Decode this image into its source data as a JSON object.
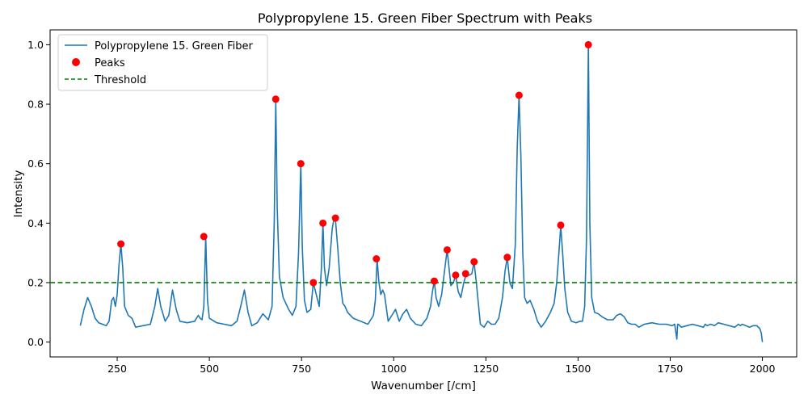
{
  "chart_data": {
    "type": "line",
    "title": "Polypropylene 15. Green Fiber Spectrum with Peaks",
    "xlabel": "Wavenumber [/cm]",
    "ylabel": "Intensity",
    "xlim": [
      68,
      2093
    ],
    "ylim": [
      -0.05,
      1.05
    ],
    "xticks": [
      250,
      500,
      750,
      1000,
      1250,
      1500,
      1750,
      2000
    ],
    "yticks": [
      0.0,
      0.2,
      0.4,
      0.6,
      0.8,
      1.0
    ],
    "xtick_labels": [
      "250",
      "500",
      "750",
      "1000",
      "1250",
      "1500",
      "1750",
      "2000"
    ],
    "ytick_labels": [
      "0.0",
      "0.2",
      "0.4",
      "0.6",
      "0.8",
      "1.0"
    ],
    "grid": false,
    "legend_position": "top-left",
    "legend": [
      {
        "label": "Polypropylene 15. Green Fiber",
        "kind": "line",
        "color": "#1f77b4"
      },
      {
        "label": "Peaks",
        "kind": "marker",
        "color": "#ff0000"
      },
      {
        "label": "Threshold",
        "kind": "dashed",
        "color": "#008000"
      }
    ],
    "series": [
      {
        "name": "Polypropylene 15. Green Fiber",
        "color": "#1f77b4",
        "x": [
          150,
          160,
          170,
          180,
          190,
          200,
          210,
          220,
          228,
          235,
          240,
          245,
          250,
          255,
          260,
          265,
          270,
          280,
          290,
          300,
          320,
          340,
          352,
          360,
          368,
          380,
          390,
          400,
          410,
          420,
          440,
          460,
          470,
          475,
          480,
          485,
          490,
          495,
          500,
          520,
          540,
          560,
          575,
          585,
          595,
          605,
          615,
          630,
          645,
          660,
          670,
          676,
          680,
          684,
          690,
          700,
          715,
          725,
          735,
          742,
          748,
          752,
          758,
          765,
          775,
          782,
          790,
          798,
          804,
          808,
          812,
          818,
          825,
          833,
          838,
          842,
          848,
          855,
          862,
          868,
          875,
          890,
          910,
          930,
          945,
          950,
          955,
          960,
          965,
          970,
          975,
          985,
          995,
          1005,
          1015,
          1025,
          1035,
          1045,
          1060,
          1075,
          1090,
          1100,
          1105,
          1110,
          1115,
          1122,
          1130,
          1138,
          1145,
          1150,
          1155,
          1162,
          1168,
          1175,
          1182,
          1190,
          1197,
          1205,
          1212,
          1218,
          1225,
          1235,
          1245,
          1255,
          1265,
          1275,
          1285,
          1295,
          1302,
          1308,
          1315,
          1322,
          1330,
          1335,
          1340,
          1345,
          1350,
          1355,
          1362,
          1370,
          1380,
          1390,
          1400,
          1412,
          1425,
          1435,
          1442,
          1448,
          1453,
          1458,
          1464,
          1472,
          1482,
          1495,
          1505,
          1512,
          1518,
          1523,
          1528,
          1532,
          1537,
          1545,
          1555,
          1565,
          1580,
          1595,
          1605,
          1615,
          1625,
          1635,
          1645,
          1655,
          1665,
          1680,
          1700,
          1720,
          1740,
          1755,
          1762,
          1768,
          1770,
          1772,
          1780,
          1795,
          1810,
          1825,
          1840,
          1845,
          1850,
          1860,
          1870,
          1880,
          1895,
          1910,
          1925,
          1935,
          1940,
          1945,
          1955,
          1965,
          1975,
          1985,
          1993,
          1997,
          2000
        ],
        "y": [
          0.055,
          0.11,
          0.15,
          0.12,
          0.08,
          0.065,
          0.06,
          0.055,
          0.07,
          0.14,
          0.15,
          0.12,
          0.16,
          0.26,
          0.33,
          0.25,
          0.12,
          0.09,
          0.08,
          0.05,
          0.055,
          0.06,
          0.12,
          0.18,
          0.12,
          0.07,
          0.09,
          0.175,
          0.11,
          0.07,
          0.065,
          0.07,
          0.09,
          0.08,
          0.075,
          0.12,
          0.355,
          0.14,
          0.08,
          0.065,
          0.06,
          0.055,
          0.07,
          0.12,
          0.175,
          0.1,
          0.055,
          0.065,
          0.095,
          0.075,
          0.12,
          0.4,
          0.815,
          0.45,
          0.22,
          0.15,
          0.11,
          0.09,
          0.12,
          0.3,
          0.6,
          0.32,
          0.14,
          0.1,
          0.11,
          0.2,
          0.16,
          0.12,
          0.25,
          0.4,
          0.25,
          0.19,
          0.25,
          0.38,
          0.415,
          0.41,
          0.32,
          0.2,
          0.13,
          0.12,
          0.1,
          0.08,
          0.07,
          0.06,
          0.09,
          0.14,
          0.28,
          0.2,
          0.16,
          0.175,
          0.16,
          0.07,
          0.09,
          0.11,
          0.07,
          0.095,
          0.11,
          0.08,
          0.06,
          0.055,
          0.08,
          0.12,
          0.17,
          0.205,
          0.15,
          0.12,
          0.16,
          0.24,
          0.31,
          0.25,
          0.19,
          0.2,
          0.225,
          0.17,
          0.15,
          0.2,
          0.23,
          0.225,
          0.23,
          0.27,
          0.19,
          0.06,
          0.05,
          0.07,
          0.06,
          0.06,
          0.08,
          0.15,
          0.24,
          0.285,
          0.2,
          0.18,
          0.33,
          0.65,
          0.83,
          0.62,
          0.3,
          0.15,
          0.13,
          0.14,
          0.11,
          0.07,
          0.05,
          0.07,
          0.1,
          0.13,
          0.2,
          0.3,
          0.39,
          0.3,
          0.18,
          0.1,
          0.07,
          0.065,
          0.07,
          0.07,
          0.12,
          0.35,
          1.0,
          0.4,
          0.15,
          0.1,
          0.095,
          0.085,
          0.075,
          0.075,
          0.09,
          0.095,
          0.085,
          0.065,
          0.06,
          0.06,
          0.05,
          0.06,
          0.065,
          0.06,
          0.06,
          0.055,
          0.06,
          0.01,
          0.06,
          0.06,
          0.05,
          0.055,
          0.06,
          0.055,
          0.05,
          0.06,
          0.055,
          0.06,
          0.055,
          0.065,
          0.06,
          0.055,
          0.05,
          0.06,
          0.055,
          0.06,
          0.055,
          0.05,
          0.055,
          0.055,
          0.045,
          0.03,
          0.0
        ]
      }
    ],
    "peaks": {
      "name": "Peaks",
      "color": "#ff0000",
      "x": [
        260,
        485,
        680,
        748,
        782,
        808,
        842,
        953,
        1110,
        1145,
        1168,
        1195,
        1218,
        1308,
        1340,
        1453,
        1528
      ],
      "y": [
        0.33,
        0.355,
        0.817,
        0.6,
        0.2,
        0.4,
        0.417,
        0.28,
        0.205,
        0.31,
        0.225,
        0.23,
        0.27,
        0.285,
        0.83,
        0.393,
        1.0
      ]
    },
    "threshold": {
      "name": "Threshold",
      "value": 0.2,
      "color": "#008000",
      "style": "dashed"
    }
  }
}
